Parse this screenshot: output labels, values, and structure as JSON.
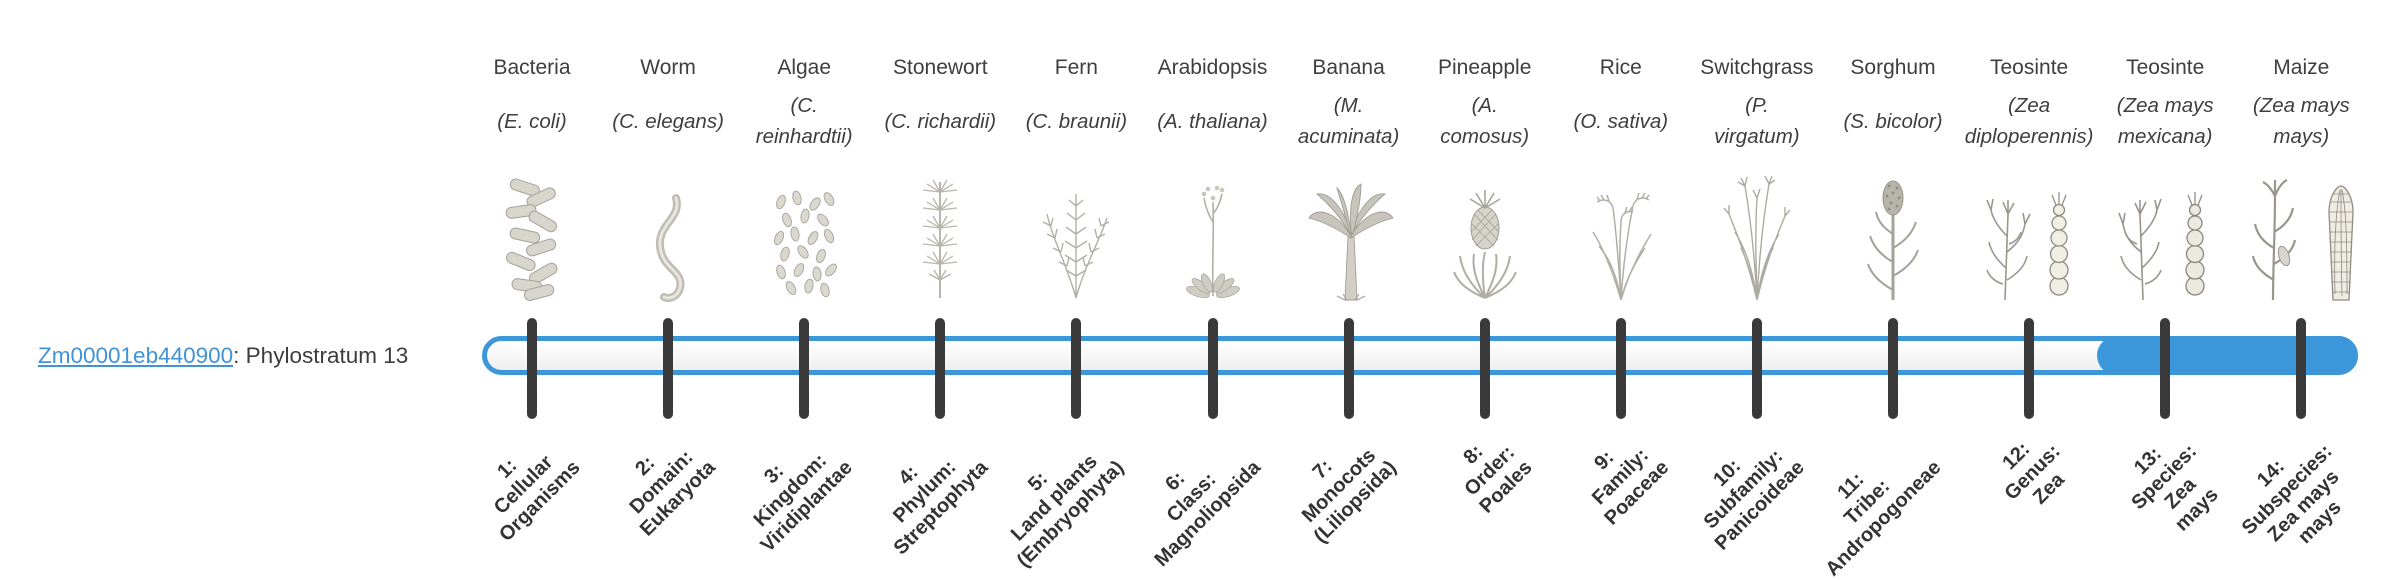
{
  "gene": {
    "id": "Zm00001eb440900",
    "label_suffix": ": Phylostratum 13",
    "phylostratum": 13
  },
  "colors": {
    "accent_blue": "#3b97da",
    "link_blue": "#3f93d6",
    "tick_dark": "#3a3a3a",
    "text_dark": "#3e3e3e"
  },
  "timeline": {
    "type": "phylostratigraphy-timeline",
    "highlighted_strata": [
      13,
      14
    ],
    "highlight_color": "#3b97da",
    "total_strata": 14
  },
  "strata": [
    {
      "common": "Bacteria",
      "species_lines": [
        "(E. coli)"
      ],
      "stratum_lines": [
        "1:",
        "Cellular",
        "Organisms"
      ],
      "icon": "bacteria-icon"
    },
    {
      "common": "Worm",
      "species_lines": [
        "(C. elegans)"
      ],
      "stratum_lines": [
        "2:",
        "Domain:",
        "Eukaryota"
      ],
      "icon": "worm-icon"
    },
    {
      "common": "Algae",
      "species_lines": [
        "(C.",
        "reinhardtii)"
      ],
      "stratum_lines": [
        "3:",
        "Kingdom:",
        "Viridiplantae"
      ],
      "icon": "algae-icon"
    },
    {
      "common": "Stonewort",
      "species_lines": [
        "(C. richardii)"
      ],
      "stratum_lines": [
        "4:",
        "Phylum:",
        "Streptophyta"
      ],
      "icon": "stonewort-icon"
    },
    {
      "common": "Fern",
      "species_lines": [
        "(C. braunii)"
      ],
      "stratum_lines": [
        "5:",
        "Land plants",
        "(Embryophyta)"
      ],
      "icon": "fern-icon"
    },
    {
      "common": "Arabidopsis",
      "species_lines": [
        "(A. thaliana)"
      ],
      "stratum_lines": [
        "6:",
        "Class:",
        "Magnoliopsida"
      ],
      "icon": "arabidopsis-icon"
    },
    {
      "common": "Banana",
      "species_lines": [
        "(M.",
        "acuminata)"
      ],
      "stratum_lines": [
        "7:",
        "Monocots",
        "(Liliopsida)"
      ],
      "icon": "banana-icon"
    },
    {
      "common": "Pineapple",
      "species_lines": [
        "(A.",
        "comosus)"
      ],
      "stratum_lines": [
        "8:",
        "Order:",
        "Poales"
      ],
      "icon": "pineapple-icon"
    },
    {
      "common": "Rice",
      "species_lines": [
        "(O. sativa)"
      ],
      "stratum_lines": [
        "9:",
        "Family:",
        "Poaceae"
      ],
      "icon": "rice-icon"
    },
    {
      "common": "Switchgrass",
      "species_lines": [
        "(P.",
        "virgatum)"
      ],
      "stratum_lines": [
        "10:",
        "Subfamily:",
        "Panicoideae"
      ],
      "icon": "switchgrass-icon"
    },
    {
      "common": "Sorghum",
      "species_lines": [
        "(S. bicolor)"
      ],
      "stratum_lines": [
        "11:",
        "Tribe:",
        "Andropogoneae"
      ],
      "icon": "sorghum-icon"
    },
    {
      "common": "Teosinte",
      "species_lines": [
        "(Zea",
        "diploperennis)"
      ],
      "stratum_lines": [
        "12:",
        "Genus:",
        "Zea"
      ],
      "icon": "teosinte-diploperennis-icon"
    },
    {
      "common": "Teosinte",
      "species_lines": [
        "(Zea mays",
        "mexicana)"
      ],
      "stratum_lines": [
        "13:",
        "Species:",
        "Zea",
        "mays"
      ],
      "icon": "teosinte-mexicana-icon"
    },
    {
      "common": "Maize",
      "species_lines": [
        "(Zea mays",
        "mays)"
      ],
      "stratum_lines": [
        "14:",
        "Subspecies:",
        "Zea mays",
        "mays"
      ],
      "icon": "maize-icon"
    }
  ]
}
